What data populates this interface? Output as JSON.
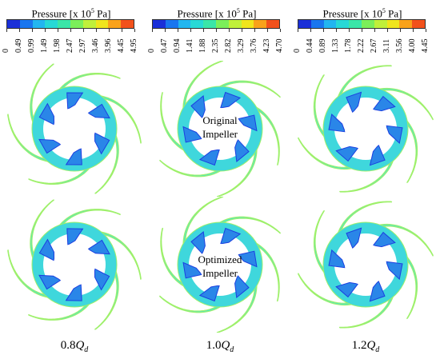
{
  "colorbars": [
    {
      "title_prefix": "Pressure [x 10",
      "title_exp": "5",
      "title_suffix": " Pa]",
      "ticks": [
        "0",
        "0.49",
        "0.99",
        "1.49",
        "1.98",
        "2.47",
        "2.97",
        "3.46",
        "3.96",
        "4.45",
        "4.95"
      ]
    },
    {
      "title_prefix": "Pressure [x 10",
      "title_exp": "5",
      "title_suffix": " Pa]",
      "ticks": [
        "0",
        "0.47",
        "0.94",
        "1.41",
        "1.88",
        "2.35",
        "2.82",
        "3.29",
        "3.76",
        "4.23",
        "4.70"
      ]
    },
    {
      "title_prefix": "Pressure [x 10",
      "title_exp": "5",
      "title_suffix": " Pa]",
      "ticks": [
        "0",
        "0.44",
        "0.89",
        "1.33",
        "1.78",
        "2.22",
        "2.67",
        "3.11",
        "3.56",
        "4.00",
        "4.45"
      ]
    }
  ],
  "palette": [
    "#1a2fd8",
    "#1976ef",
    "#22b6f0",
    "#27d9d6",
    "#3ae6a8",
    "#7bef5a",
    "#c0f03a",
    "#f0e51c",
    "#f9a21a",
    "#f2511b"
  ],
  "impeller_colors": {
    "hub": "#3fd7dc",
    "blade": "#2a86e8",
    "blade_tip": "#1c3fe0",
    "outer": "#46e6cf",
    "edge": "#9ef06a"
  },
  "labels": {
    "original": [
      "Original",
      "Impeller"
    ],
    "optimized": [
      "Optimized",
      "Impeller"
    ]
  },
  "flows": [
    {
      "value": "0.8",
      "q": "Q",
      "sub": "d"
    },
    {
      "value": "1.0",
      "q": "Q",
      "sub": "d"
    },
    {
      "value": "1.2",
      "q": "Q",
      "sub": "d"
    }
  ]
}
